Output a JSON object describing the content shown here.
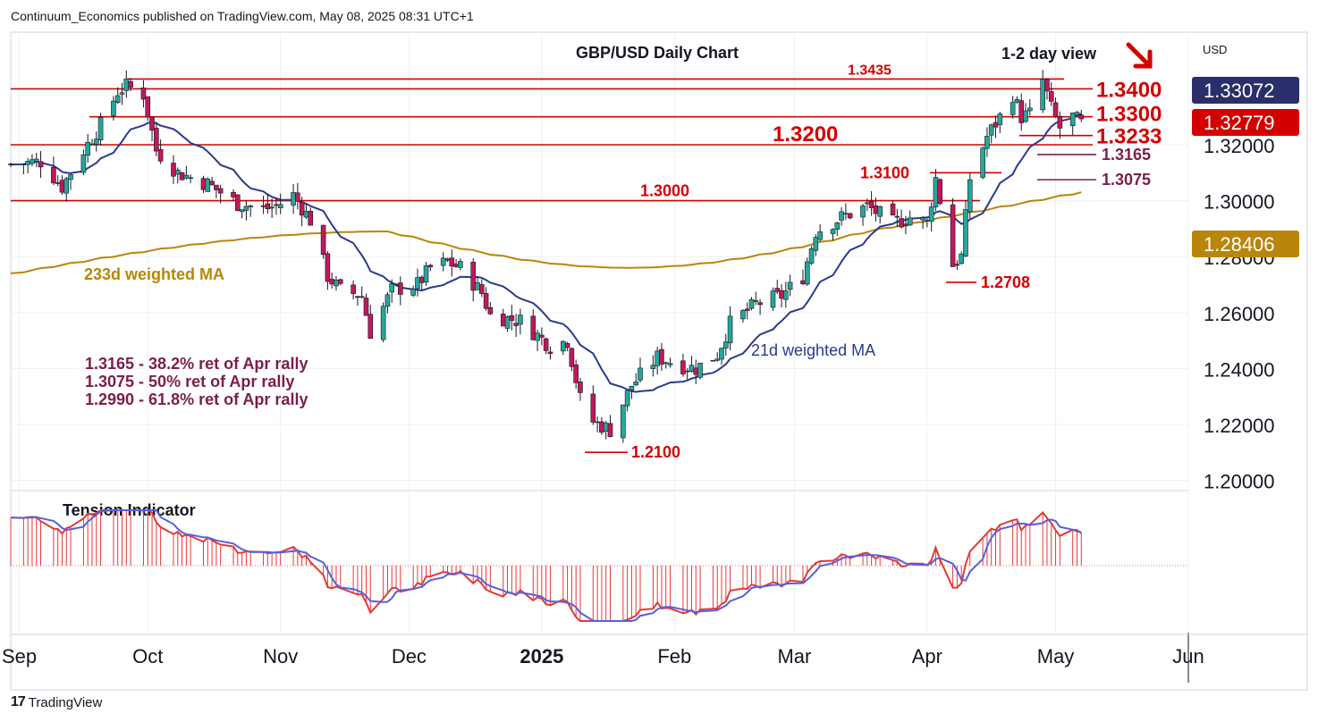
{
  "header": {
    "published_text": "Continuum_Economics published on TradingView.com, May 08, 2025 08:31 UTC+1"
  },
  "footer": {
    "brand": "TradingView",
    "logo_glyph": "17"
  },
  "chart_data": {
    "type": "candlestick",
    "title": "GBP/USD Daily Chart",
    "view_label": "1-2 day view",
    "view_direction": "down",
    "currency": "USD",
    "ylim": [
      1.19,
      1.355
    ],
    "y_ticks": [
      "1.20000",
      "1.22000",
      "1.24000",
      "1.26000",
      "1.28000",
      "1.30000",
      "1.32000"
    ],
    "x_ticks": [
      "Sep",
      "Oct",
      "Nov",
      "Dec",
      "2025",
      "Feb",
      "Mar",
      "Apr",
      "May",
      "Jun"
    ],
    "x_tick_dates": [
      "2024-09-01",
      "2024-10-01",
      "2024-11-01",
      "2024-12-01",
      "2025-01-01",
      "2025-02-01",
      "2025-03-01",
      "2025-04-01",
      "2025-05-01",
      "2025-06-01"
    ],
    "x_range": [
      "2024-08-30",
      "2025-06-01"
    ],
    "price_badges": [
      {
        "value": "1.33072",
        "color": "#2a2e6b"
      },
      {
        "value": "1.32779",
        "color": "#d40000"
      },
      {
        "value": "1.28406",
        "color": "#b8860b"
      }
    ],
    "resistance_support_lines": [
      {
        "level": 1.3435,
        "label": "1.3435"
      },
      {
        "level": 1.34,
        "label": "1.3400"
      },
      {
        "level": 1.33,
        "label": "1.3300"
      },
      {
        "level": 1.3233,
        "label": "1.3233"
      },
      {
        "level": 1.32,
        "label": "1.3200"
      },
      {
        "level": 1.3,
        "label": "1.3000"
      }
    ],
    "short_levels": [
      {
        "level": 1.3165,
        "label": "1.3165"
      },
      {
        "level": 1.3075,
        "label": "1.3075"
      },
      {
        "level": 1.31,
        "label": "1.3100"
      },
      {
        "level": 1.2708,
        "label": "1.2708"
      },
      {
        "level": 1.21,
        "label": "1.2100"
      }
    ],
    "ma_labels": {
      "ma233": "233d weighted MA",
      "ma21": "21d weighted MA"
    },
    "notes": [
      "1.3165 - 38.2% ret of Apr rally",
      "1.3075 - 50% ret of Apr rally",
      "1.2990 - 61.8% ret of Apr rally"
    ],
    "colors": {
      "up": "#26a69a",
      "down": "#c2185b",
      "levels": "#d40000",
      "ma21": "#2a3a8f",
      "ma233": "#b8860b",
      "notes": "#7b1e4a",
      "tension_fill": "#e53935",
      "tension_line": "#5560e0",
      "tension_signal": "#e53935"
    },
    "tension_indicator": {
      "title": "Tension Indicator"
    }
  }
}
